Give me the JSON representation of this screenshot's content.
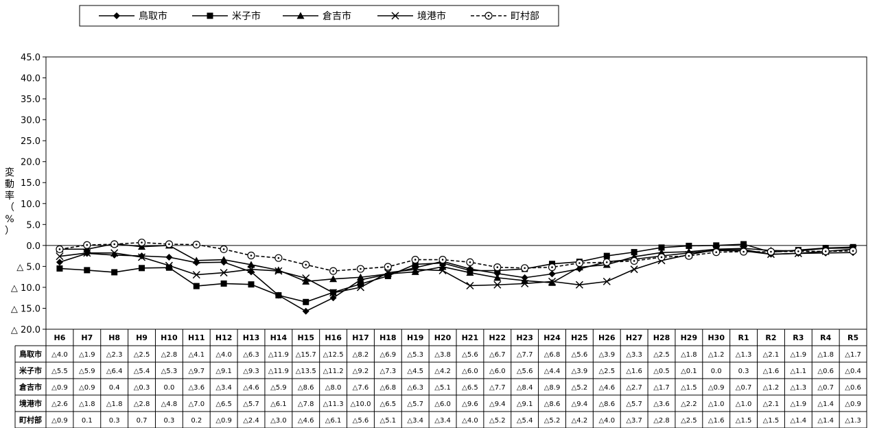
{
  "chart_data": {
    "type": "line",
    "title": "",
    "xlabel": "",
    "ylabel": [
      "変",
      "動",
      "率",
      "（",
      "%",
      "）"
    ],
    "ylim": [
      -20,
      45
    ],
    "yticks": [
      45,
      40,
      35,
      30,
      25,
      20,
      15,
      10,
      5,
      0,
      -5,
      -10,
      -15,
      -20
    ],
    "ytick_labels": [
      "45.0",
      "40.0",
      "35.0",
      "30.0",
      "25.0",
      "20.0",
      "15.0",
      "10.0",
      "5.0",
      "0.0",
      "△ 5.0",
      "△ 10.0",
      "△ 15.0",
      "△ 20.0"
    ],
    "grid": false,
    "legend_position": "top",
    "categories": [
      "H6",
      "H7",
      "H8",
      "H9",
      "H10",
      "H11",
      "H12",
      "H13",
      "H14",
      "H15",
      "H16",
      "H17",
      "H18",
      "H19",
      "H20",
      "H21",
      "H22",
      "H23",
      "H24",
      "H25",
      "H26",
      "H27",
      "H28",
      "H29",
      "H30",
      "R1",
      "R2",
      "R3",
      "R4",
      "R5"
    ],
    "series": [
      {
        "name": "鳥取市",
        "marker": "diamond",
        "dashed": false,
        "values": [
          -4.0,
          -1.9,
          -2.3,
          -2.5,
          -2.8,
          -4.1,
          -4.0,
          -6.3,
          -11.9,
          -15.7,
          -12.5,
          -8.2,
          -6.9,
          -5.3,
          -3.8,
          -5.6,
          -6.7,
          -7.7,
          -6.8,
          -5.6,
          -3.9,
          -3.3,
          -2.5,
          -1.8,
          -1.2,
          -1.3,
          -2.1,
          -1.9,
          -1.8,
          -1.7
        ],
        "labels": [
          "△4.0",
          "△1.9",
          "△2.3",
          "△2.5",
          "△2.8",
          "△4.1",
          "△4.0",
          "△6.3",
          "△11.9",
          "△15.7",
          "△12.5",
          "△8.2",
          "△6.9",
          "△5.3",
          "△3.8",
          "△5.6",
          "△6.7",
          "△7.7",
          "△6.8",
          "△5.6",
          "△3.9",
          "△3.3",
          "△2.5",
          "△1.8",
          "△1.2",
          "△1.3",
          "△2.1",
          "△1.9",
          "△1.8",
          "△1.7"
        ]
      },
      {
        "name": "米子市",
        "marker": "square",
        "dashed": false,
        "values": [
          -5.5,
          -5.9,
          -6.4,
          -5.4,
          -5.3,
          -9.7,
          -9.1,
          -9.3,
          -11.9,
          -13.5,
          -11.2,
          -9.2,
          -7.3,
          -4.5,
          -4.2,
          -6.0,
          -6.0,
          -5.6,
          -4.4,
          -3.9,
          -2.5,
          -1.6,
          -0.5,
          -0.1,
          0.0,
          0.3,
          -1.6,
          -1.1,
          -0.6,
          -0.4
        ],
        "labels": [
          "△5.5",
          "△5.9",
          "△6.4",
          "△5.4",
          "△5.3",
          "△9.7",
          "△9.1",
          "△9.3",
          "△11.9",
          "△13.5",
          "△11.2",
          "△9.2",
          "△7.3",
          "△4.5",
          "△4.2",
          "△6.0",
          "△6.0",
          "△5.6",
          "△4.4",
          "△3.9",
          "△2.5",
          "△1.6",
          "△0.5",
          "△0.1",
          "0.0",
          "0.3",
          "△1.6",
          "△1.1",
          "△0.6",
          "△0.4"
        ]
      },
      {
        "name": "倉吉市",
        "marker": "triangle",
        "dashed": false,
        "values": [
          -0.9,
          -0.9,
          0.4,
          -0.3,
          0.0,
          -3.6,
          -3.4,
          -4.6,
          -5.9,
          -8.6,
          -8.0,
          -7.6,
          -6.8,
          -6.3,
          -5.1,
          -6.5,
          -7.7,
          -8.4,
          -8.9,
          -5.2,
          -4.6,
          -2.7,
          -1.7,
          -1.5,
          -0.9,
          -0.7,
          -1.2,
          -1.3,
          -0.7,
          -0.6
        ],
        "labels": [
          "△0.9",
          "△0.9",
          "0.4",
          "△0.3",
          "0.0",
          "△3.6",
          "△3.4",
          "△4.6",
          "△5.9",
          "△8.6",
          "△8.0",
          "△7.6",
          "△6.8",
          "△6.3",
          "△5.1",
          "△6.5",
          "△7.7",
          "△8.4",
          "△8.9",
          "△5.2",
          "△4.6",
          "△2.7",
          "△1.7",
          "△1.5",
          "△0.9",
          "△0.7",
          "△1.2",
          "△1.3",
          "△0.7",
          "△0.6"
        ]
      },
      {
        "name": "境港市",
        "marker": "x",
        "dashed": false,
        "values": [
          -2.6,
          -1.8,
          -1.8,
          -2.8,
          -4.8,
          -7.0,
          -6.5,
          -5.7,
          -6.1,
          -7.8,
          -11.3,
          -10.0,
          -6.5,
          -5.7,
          -6.0,
          -9.6,
          -9.4,
          -9.1,
          -8.6,
          -9.4,
          -8.6,
          -5.7,
          -3.6,
          -2.2,
          -1.0,
          -1.0,
          -2.1,
          -1.9,
          -1.4,
          -0.9
        ],
        "labels": [
          "△2.6",
          "△1.8",
          "△1.8",
          "△2.8",
          "△4.8",
          "△7.0",
          "△6.5",
          "△5.7",
          "△6.1",
          "△7.8",
          "△11.3",
          "△10.0",
          "△6.5",
          "△5.7",
          "△6.0",
          "△9.6",
          "△9.4",
          "△9.1",
          "△8.6",
          "△9.4",
          "△8.6",
          "△5.7",
          "△3.6",
          "△2.2",
          "△1.0",
          "△1.0",
          "△2.1",
          "△1.9",
          "△1.4",
          "△0.9"
        ]
      },
      {
        "name": "町村部",
        "marker": "circle",
        "dashed": true,
        "values": [
          -0.9,
          0.1,
          0.3,
          0.7,
          0.3,
          0.2,
          -0.9,
          -2.4,
          -3.0,
          -4.6,
          -6.1,
          -5.6,
          -5.1,
          -3.4,
          -3.4,
          -4.0,
          -5.2,
          -5.4,
          -5.2,
          -4.2,
          -4.0,
          -3.7,
          -2.8,
          -2.5,
          -1.6,
          -1.5,
          -1.5,
          -1.4,
          -1.4,
          -1.3
        ],
        "labels": [
          "△0.9",
          "0.1",
          "0.3",
          "0.7",
          "0.3",
          "0.2",
          "△0.9",
          "△2.4",
          "△3.0",
          "△4.6",
          "△6.1",
          "△5.6",
          "△5.1",
          "△3.4",
          "△3.4",
          "△4.0",
          "△5.2",
          "△5.4",
          "△5.2",
          "△4.2",
          "△4.0",
          "△3.7",
          "△2.8",
          "△2.5",
          "△1.6",
          "△1.5",
          "△1.5",
          "△1.4",
          "△1.4",
          "△1.3"
        ]
      }
    ]
  }
}
